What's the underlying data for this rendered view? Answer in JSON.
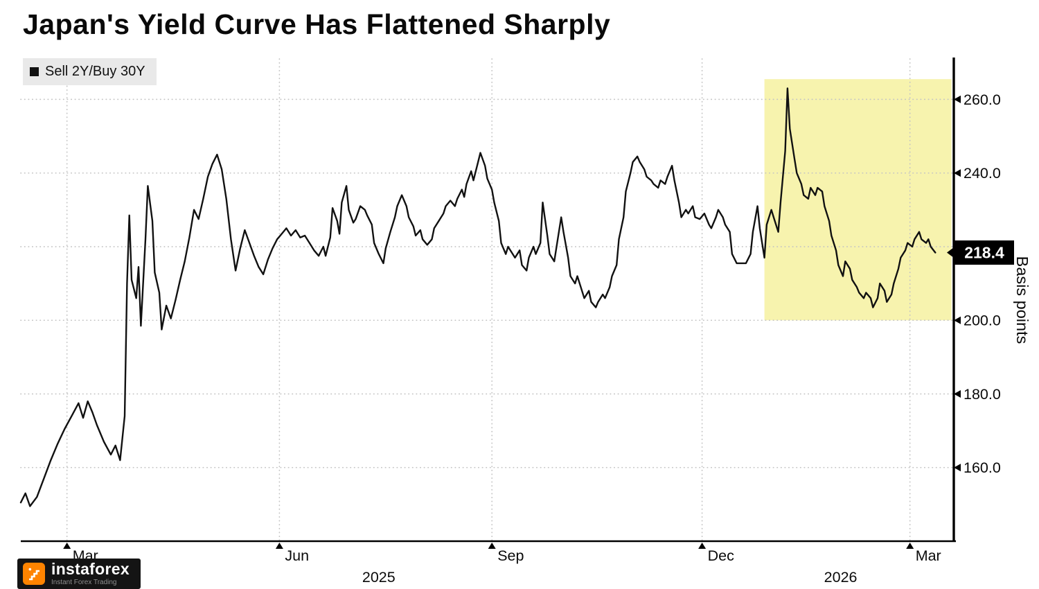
{
  "page": {
    "title": "Japan's Yield Curve Has Flattened Sharply",
    "legend": {
      "marker": "■",
      "label": "Sell 2Y/Buy 30Y"
    },
    "y_axis_title": "Basis points"
  },
  "logo": {
    "name": "instaforex",
    "tagline": "Instant Forex Trading"
  },
  "colors": {
    "line": "#111111",
    "grid": "#c4c4c4",
    "highlight": "#f6f1a0",
    "axis": "#000000",
    "badge_bg": "#000000",
    "badge_text": "#ffffff",
    "legend_bg": "#e9e9e9",
    "logo_accent": "#ff8400"
  },
  "chart_data": {
    "type": "line",
    "title": "Japan's Yield Curve Has Flattened Sharply",
    "series_name": "Sell 2Y/Buy 30Y",
    "ylabel": "Basis points",
    "unit": "basis points",
    "grid": true,
    "x_domain": [
      "2025-02-09",
      "2026-03-20"
    ],
    "y_domain": [
      140,
      271
    ],
    "y_ticks": [
      160,
      180,
      200,
      220,
      240,
      260
    ],
    "x_ticks": [
      {
        "date": "2025-03-01",
        "label": "Mar"
      },
      {
        "date": "2025-06-01",
        "label": "Jun"
      },
      {
        "date": "2025-09-01",
        "label": "Sep"
      },
      {
        "date": "2025-12-01",
        "label": "Dec"
      },
      {
        "date": "2026-03-01",
        "label": "Mar"
      }
    ],
    "year_labels": [
      {
        "date": "2025-07-14",
        "label": "2025"
      },
      {
        "date": "2026-01-30",
        "label": "2026"
      }
    ],
    "highlight_region": {
      "x": [
        "2025-12-28",
        "2026-03-19"
      ],
      "y": [
        200,
        265.5
      ]
    },
    "last_value": 218.4,
    "points": [
      [
        "2025-02-09",
        150.5
      ],
      [
        "2025-02-11",
        153
      ],
      [
        "2025-02-13",
        149.5
      ],
      [
        "2025-02-16",
        152
      ],
      [
        "2025-02-19",
        157
      ],
      [
        "2025-02-22",
        162
      ],
      [
        "2025-02-25",
        166.5
      ],
      [
        "2025-02-28",
        170.5
      ],
      [
        "2025-03-03",
        174
      ],
      [
        "2025-03-06",
        177.5
      ],
      [
        "2025-03-08",
        173.5
      ],
      [
        "2025-03-10",
        178
      ],
      [
        "2025-03-12",
        175
      ],
      [
        "2025-03-14",
        171.5
      ],
      [
        "2025-03-17",
        167
      ],
      [
        "2025-03-20",
        163.5
      ],
      [
        "2025-03-22",
        166
      ],
      [
        "2025-03-24",
        162
      ],
      [
        "2025-03-26",
        174
      ],
      [
        "2025-03-27",
        210
      ],
      [
        "2025-03-28",
        228.5
      ],
      [
        "2025-03-29",
        211
      ],
      [
        "2025-03-31",
        206
      ],
      [
        "2025-04-01",
        214.5
      ],
      [
        "2025-04-02",
        198.5
      ],
      [
        "2025-04-04",
        222
      ],
      [
        "2025-04-05",
        236.5
      ],
      [
        "2025-04-07",
        227
      ],
      [
        "2025-04-08",
        213
      ],
      [
        "2025-04-10",
        207.5
      ],
      [
        "2025-04-11",
        197.5
      ],
      [
        "2025-04-13",
        204
      ],
      [
        "2025-04-15",
        200.5
      ],
      [
        "2025-04-17",
        205.5
      ],
      [
        "2025-04-19",
        211
      ],
      [
        "2025-04-21",
        216
      ],
      [
        "2025-04-23",
        222.5
      ],
      [
        "2025-04-25",
        230
      ],
      [
        "2025-04-27",
        227.5
      ],
      [
        "2025-04-29",
        233
      ],
      [
        "2025-05-01",
        239
      ],
      [
        "2025-05-03",
        242.5
      ],
      [
        "2025-05-05",
        245
      ],
      [
        "2025-05-07",
        241
      ],
      [
        "2025-05-09",
        233
      ],
      [
        "2025-05-11",
        222
      ],
      [
        "2025-05-13",
        213.5
      ],
      [
        "2025-05-15",
        219.5
      ],
      [
        "2025-05-17",
        224.5
      ],
      [
        "2025-05-19",
        221
      ],
      [
        "2025-05-21",
        217.5
      ],
      [
        "2025-05-23",
        214.5
      ],
      [
        "2025-05-25",
        212.5
      ],
      [
        "2025-05-27",
        216.5
      ],
      [
        "2025-05-29",
        219.5
      ],
      [
        "2025-05-31",
        222
      ],
      [
        "2025-06-02",
        223.5
      ],
      [
        "2025-06-04",
        225
      ],
      [
        "2025-06-06",
        223
      ],
      [
        "2025-06-08",
        224.5
      ],
      [
        "2025-06-10",
        222.5
      ],
      [
        "2025-06-12",
        223
      ],
      [
        "2025-06-14",
        221
      ],
      [
        "2025-06-16",
        219
      ],
      [
        "2025-06-18",
        217.5
      ],
      [
        "2025-06-20",
        220
      ],
      [
        "2025-06-21",
        217.5
      ],
      [
        "2025-06-23",
        222.5
      ],
      [
        "2025-06-24",
        230.5
      ],
      [
        "2025-06-26",
        227
      ],
      [
        "2025-06-27",
        223.5
      ],
      [
        "2025-06-28",
        232
      ],
      [
        "2025-06-30",
        236.5
      ],
      [
        "2025-07-01",
        230
      ],
      [
        "2025-07-03",
        226.5
      ],
      [
        "2025-07-04",
        227.5
      ],
      [
        "2025-07-06",
        231
      ],
      [
        "2025-07-08",
        230
      ],
      [
        "2025-07-09",
        228.5
      ],
      [
        "2025-07-11",
        226
      ],
      [
        "2025-07-12",
        221
      ],
      [
        "2025-07-14",
        218
      ],
      [
        "2025-07-16",
        215.5
      ],
      [
        "2025-07-17",
        219.5
      ],
      [
        "2025-07-19",
        224
      ],
      [
        "2025-07-21",
        228
      ],
      [
        "2025-07-22",
        231
      ],
      [
        "2025-07-24",
        234
      ],
      [
        "2025-07-26",
        231
      ],
      [
        "2025-07-27",
        228
      ],
      [
        "2025-07-29",
        225.5
      ],
      [
        "2025-07-30",
        223
      ],
      [
        "2025-08-01",
        224.5
      ],
      [
        "2025-08-02",
        222
      ],
      [
        "2025-08-04",
        220.5
      ],
      [
        "2025-08-06",
        222
      ],
      [
        "2025-08-07",
        225
      ],
      [
        "2025-08-09",
        227
      ],
      [
        "2025-08-11",
        229
      ],
      [
        "2025-08-12",
        231
      ],
      [
        "2025-08-14",
        232.5
      ],
      [
        "2025-08-16",
        231
      ],
      [
        "2025-08-17",
        233
      ],
      [
        "2025-08-19",
        235.5
      ],
      [
        "2025-08-20",
        233.5
      ],
      [
        "2025-08-21",
        237
      ],
      [
        "2025-08-23",
        240.5
      ],
      [
        "2025-08-24",
        238
      ],
      [
        "2025-08-26",
        243
      ],
      [
        "2025-08-27",
        245.5
      ],
      [
        "2025-08-29",
        242
      ],
      [
        "2025-08-30",
        238.5
      ],
      [
        "2025-09-01",
        235.5
      ],
      [
        "2025-09-02",
        232
      ],
      [
        "2025-09-04",
        227
      ],
      [
        "2025-09-05",
        221
      ],
      [
        "2025-09-07",
        218
      ],
      [
        "2025-09-08",
        220
      ],
      [
        "2025-09-10",
        218
      ],
      [
        "2025-09-11",
        217
      ],
      [
        "2025-09-13",
        219
      ],
      [
        "2025-09-14",
        215
      ],
      [
        "2025-09-16",
        213.5
      ],
      [
        "2025-09-17",
        217
      ],
      [
        "2025-09-19",
        220
      ],
      [
        "2025-09-20",
        218
      ],
      [
        "2025-09-22",
        221
      ],
      [
        "2025-09-23",
        232
      ],
      [
        "2025-09-25",
        223
      ],
      [
        "2025-09-26",
        218
      ],
      [
        "2025-09-28",
        216
      ],
      [
        "2025-09-29",
        220
      ],
      [
        "2025-10-01",
        228
      ],
      [
        "2025-10-02",
        224
      ],
      [
        "2025-10-04",
        217
      ],
      [
        "2025-10-05",
        212
      ],
      [
        "2025-10-07",
        210
      ],
      [
        "2025-10-08",
        212
      ],
      [
        "2025-10-10",
        208
      ],
      [
        "2025-10-11",
        206
      ],
      [
        "2025-10-13",
        208
      ],
      [
        "2025-10-14",
        205
      ],
      [
        "2025-10-16",
        203.5
      ],
      [
        "2025-10-17",
        205
      ],
      [
        "2025-10-19",
        207
      ],
      [
        "2025-10-20",
        206
      ],
      [
        "2025-10-22",
        209
      ],
      [
        "2025-10-23",
        212
      ],
      [
        "2025-10-25",
        215
      ],
      [
        "2025-10-26",
        222
      ],
      [
        "2025-10-28",
        228
      ],
      [
        "2025-10-29",
        235
      ],
      [
        "2025-10-31",
        240
      ],
      [
        "2025-11-01",
        243
      ],
      [
        "2025-11-03",
        244.5
      ],
      [
        "2025-11-04",
        243
      ],
      [
        "2025-11-06",
        241
      ],
      [
        "2025-11-07",
        239
      ],
      [
        "2025-11-09",
        238
      ],
      [
        "2025-11-10",
        237
      ],
      [
        "2025-11-12",
        236
      ],
      [
        "2025-11-13",
        238
      ],
      [
        "2025-11-15",
        237
      ],
      [
        "2025-11-16",
        239
      ],
      [
        "2025-11-18",
        242
      ],
      [
        "2025-11-19",
        238
      ],
      [
        "2025-11-21",
        232
      ],
      [
        "2025-11-22",
        228
      ],
      [
        "2025-11-24",
        230
      ],
      [
        "2025-11-25",
        229
      ],
      [
        "2025-11-27",
        231
      ],
      [
        "2025-11-28",
        228
      ],
      [
        "2025-11-30",
        227.5
      ],
      [
        "2025-12-02",
        229
      ],
      [
        "2025-12-04",
        226
      ],
      [
        "2025-12-05",
        225
      ],
      [
        "2025-12-07",
        228
      ],
      [
        "2025-12-08",
        230
      ],
      [
        "2025-12-10",
        228
      ],
      [
        "2025-12-11",
        226
      ],
      [
        "2025-12-13",
        224
      ],
      [
        "2025-12-14",
        218
      ],
      [
        "2025-12-16",
        215.5
      ],
      [
        "2025-12-18",
        215.5
      ],
      [
        "2025-12-20",
        215.5
      ],
      [
        "2025-12-22",
        218
      ],
      [
        "2025-12-23",
        224
      ],
      [
        "2025-12-25",
        231
      ],
      [
        "2025-12-26",
        225
      ],
      [
        "2025-12-28",
        217
      ],
      [
        "2025-12-29",
        226
      ],
      [
        "2025-12-31",
        230
      ],
      [
        "2026-01-01",
        228
      ],
      [
        "2026-01-03",
        224
      ],
      [
        "2026-01-04",
        232
      ],
      [
        "2026-01-06",
        246
      ],
      [
        "2026-01-07",
        263
      ],
      [
        "2026-01-08",
        252
      ],
      [
        "2026-01-10",
        244
      ],
      [
        "2026-01-11",
        240
      ],
      [
        "2026-01-13",
        237
      ],
      [
        "2026-01-14",
        234
      ],
      [
        "2026-01-16",
        233
      ],
      [
        "2026-01-17",
        236
      ],
      [
        "2026-01-19",
        234
      ],
      [
        "2026-01-20",
        236
      ],
      [
        "2026-01-22",
        235
      ],
      [
        "2026-01-23",
        231
      ],
      [
        "2026-01-25",
        227
      ],
      [
        "2026-01-26",
        223
      ],
      [
        "2026-01-28",
        219
      ],
      [
        "2026-01-29",
        215
      ],
      [
        "2026-01-31",
        212
      ],
      [
        "2026-02-01",
        216
      ],
      [
        "2026-02-03",
        214
      ],
      [
        "2026-02-04",
        211
      ],
      [
        "2026-02-06",
        209
      ],
      [
        "2026-02-07",
        207.5
      ],
      [
        "2026-02-09",
        206
      ],
      [
        "2026-02-10",
        207.5
      ],
      [
        "2026-02-12",
        206
      ],
      [
        "2026-02-13",
        203.5
      ],
      [
        "2026-02-15",
        206
      ],
      [
        "2026-02-16",
        210
      ],
      [
        "2026-02-18",
        208
      ],
      [
        "2026-02-19",
        205
      ],
      [
        "2026-02-21",
        207
      ],
      [
        "2026-02-22",
        210
      ],
      [
        "2026-02-24",
        214
      ],
      [
        "2026-02-25",
        217
      ],
      [
        "2026-02-27",
        219
      ],
      [
        "2026-02-28",
        221
      ],
      [
        "2026-03-02",
        220
      ],
      [
        "2026-03-03",
        222
      ],
      [
        "2026-03-05",
        224
      ],
      [
        "2026-03-06",
        222
      ],
      [
        "2026-03-08",
        221
      ],
      [
        "2026-03-09",
        222
      ],
      [
        "2026-03-10",
        220
      ],
      [
        "2026-03-12",
        218.4
      ]
    ]
  }
}
